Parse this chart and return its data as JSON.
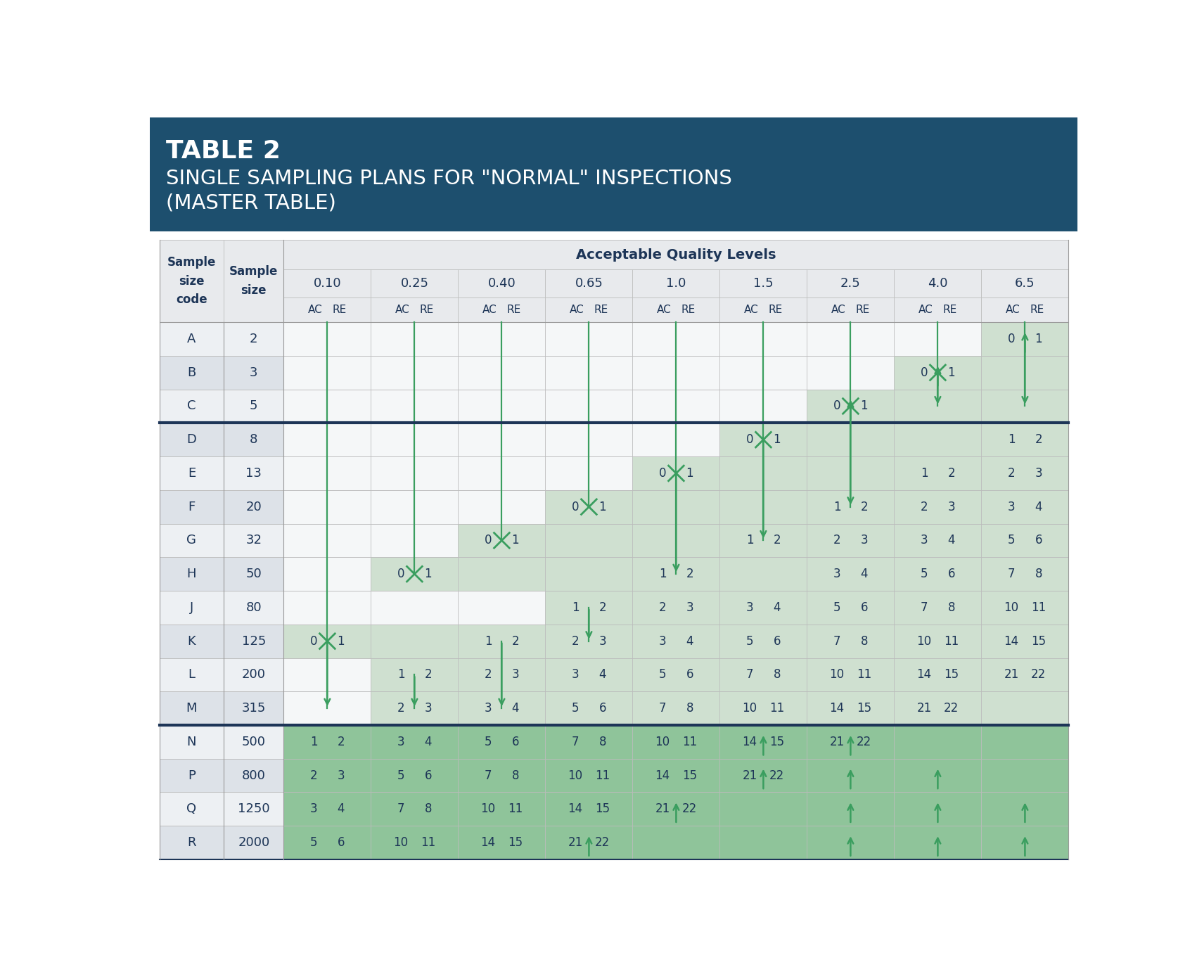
{
  "title_line1": "TABLE 2",
  "title_line2": "SINGLE SAMPLING PLANS FOR \"NORMAL\" INSPECTIONS",
  "title_line3": "(MASTER TABLE)",
  "header_bg": "#1d4f6e",
  "table_header_bg": "#e8eaed",
  "light_green1": "#cfe0d0",
  "light_green2": "#8fc49a",
  "arrow_color": "#3a9e5f",
  "text_dark": "#1d3557",
  "row_labels": [
    "A",
    "B",
    "C",
    "D",
    "E",
    "F",
    "G",
    "H",
    "J",
    "K",
    "L",
    "M",
    "N",
    "P",
    "Q",
    "R"
  ],
  "sample_sizes": [
    "2",
    "3",
    "5",
    "8",
    "13",
    "20",
    "32",
    "50",
    "80",
    "125",
    "200",
    "315",
    "500",
    "800",
    "1250",
    "2000"
  ],
  "aql_levels": [
    "0.10",
    "0.25",
    "0.40",
    "0.65",
    "1.0",
    "1.5",
    "2.5",
    "4.0",
    "6.5"
  ],
  "table_data": {
    "A": {
      "6.5": [
        0,
        1
      ]
    },
    "B": {
      "4.0": [
        0,
        1
      ]
    },
    "C": {
      "2.5": [
        0,
        1
      ]
    },
    "D": {
      "1.5": [
        0,
        1
      ],
      "6.5": [
        1,
        2
      ]
    },
    "E": {
      "1.0": [
        0,
        1
      ],
      "4.0": [
        1,
        2
      ],
      "6.5": [
        2,
        3
      ]
    },
    "F": {
      "0.65": [
        0,
        1
      ],
      "2.5": [
        1,
        2
      ],
      "4.0": [
        2,
        3
      ],
      "6.5": [
        3,
        4
      ]
    },
    "G": {
      "0.40": [
        0,
        1
      ],
      "1.5": [
        1,
        2
      ],
      "2.5": [
        2,
        3
      ],
      "4.0": [
        3,
        4
      ],
      "6.5": [
        5,
        6
      ]
    },
    "H": {
      "0.25": [
        0,
        1
      ],
      "1.0": [
        1,
        2
      ],
      "2.5": [
        3,
        4
      ],
      "4.0": [
        5,
        6
      ],
      "6.5": [
        7,
        8
      ]
    },
    "J": {
      "0.65": [
        1,
        2
      ],
      "1.0": [
        2,
        3
      ],
      "1.5": [
        3,
        4
      ],
      "2.5": [
        5,
        6
      ],
      "4.0": [
        7,
        8
      ],
      "6.5": [
        10,
        11
      ]
    },
    "K": {
      "0.10": [
        0,
        1
      ],
      "0.40": [
        1,
        2
      ],
      "0.65": [
        2,
        3
      ],
      "1.0": [
        3,
        4
      ],
      "1.5": [
        5,
        6
      ],
      "2.5": [
        7,
        8
      ],
      "4.0": [
        10,
        11
      ],
      "6.5": [
        14,
        15
      ]
    },
    "L": {
      "0.25": [
        1,
        2
      ],
      "0.40": [
        2,
        3
      ],
      "0.65": [
        3,
        4
      ],
      "1.0": [
        5,
        6
      ],
      "1.5": [
        7,
        8
      ],
      "2.5": [
        10,
        11
      ],
      "4.0": [
        14,
        15
      ],
      "6.5": [
        21,
        22
      ]
    },
    "M": {
      "0.25": [
        2,
        3
      ],
      "0.40": [
        3,
        4
      ],
      "0.65": [
        5,
        6
      ],
      "1.0": [
        7,
        8
      ],
      "1.5": [
        10,
        11
      ],
      "2.5": [
        14,
        15
      ],
      "4.0": [
        21,
        22
      ]
    },
    "N": {
      "0.10": [
        1,
        2
      ],
      "0.25": [
        3,
        4
      ],
      "0.40": [
        5,
        6
      ],
      "0.65": [
        7,
        8
      ],
      "1.0": [
        10,
        11
      ],
      "1.5": [
        14,
        15
      ],
      "2.5": [
        21,
        22
      ]
    },
    "P": {
      "0.10": [
        2,
        3
      ],
      "0.25": [
        5,
        6
      ],
      "0.40": [
        7,
        8
      ],
      "0.65": [
        10,
        11
      ],
      "1.0": [
        14,
        15
      ],
      "1.5": [
        21,
        22
      ]
    },
    "Q": {
      "0.10": [
        3,
        4
      ],
      "0.25": [
        7,
        8
      ],
      "0.40": [
        10,
        11
      ],
      "0.65": [
        14,
        15
      ],
      "1.0": [
        21,
        22
      ]
    },
    "R": {
      "0.10": [
        5,
        6
      ],
      "0.25": [
        10,
        11
      ],
      "0.40": [
        14,
        15
      ],
      "0.65": [
        21,
        22
      ]
    }
  },
  "green_shaded_start": {
    "A": "6.5",
    "B": "4.0",
    "C": "2.5",
    "D": "1.5",
    "E": "1.0",
    "F": "0.65",
    "G": "0.40",
    "H": "0.25",
    "J": "0.65",
    "K": "0.10",
    "L": "0.25",
    "M": "0.25",
    "N": "0.10",
    "P": "0.10",
    "Q": "0.10",
    "R": "0.10"
  },
  "dark_green_rows": [
    "N",
    "P",
    "Q",
    "R"
  ],
  "thick_border_after": [
    "C",
    "M"
  ],
  "x_markers": [
    [
      "D",
      "1.5"
    ],
    [
      "E",
      "1.0"
    ],
    [
      "F",
      "0.65"
    ],
    [
      "G",
      "0.40"
    ],
    [
      "H",
      "0.25"
    ],
    [
      "K",
      "0.10"
    ],
    [
      "B",
      "4.0"
    ],
    [
      "C",
      "2.5"
    ]
  ],
  "down_arrow_segments": [
    [
      "A",
      "6.5",
      "C",
      "6.5"
    ],
    [
      "A",
      "4.0",
      "B",
      "4.0"
    ],
    [
      "A",
      "2.5",
      "C",
      "2.5"
    ],
    [
      "A",
      "1.5",
      "D",
      "1.5"
    ],
    [
      "A",
      "1.0",
      "E",
      "1.0"
    ],
    [
      "A",
      "0.65",
      "F",
      "0.65"
    ],
    [
      "A",
      "0.40",
      "G",
      "0.40"
    ],
    [
      "A",
      "0.25",
      "H",
      "0.25"
    ],
    [
      "A",
      "0.10",
      "K",
      "0.10"
    ],
    [
      "K",
      "0.40",
      "M",
      "0.40"
    ],
    [
      "J",
      "0.65",
      "K",
      "0.65"
    ],
    [
      "L",
      "0.25",
      "M",
      "0.25"
    ]
  ],
  "up_arrow_cells": [
    [
      "A",
      "6.5"
    ],
    [
      "B",
      "4.0"
    ],
    [
      "C",
      "2.5"
    ],
    [
      "N",
      "1.5"
    ],
    [
      "N",
      "2.5"
    ],
    [
      "P",
      "1.5"
    ],
    [
      "P",
      "2.5"
    ],
    [
      "P",
      "4.0"
    ],
    [
      "Q",
      "1.0"
    ],
    [
      "Q",
      "2.5"
    ],
    [
      "Q",
      "4.0"
    ],
    [
      "Q",
      "6.5"
    ],
    [
      "R",
      "0.65"
    ],
    [
      "R",
      "2.5"
    ],
    [
      "R",
      "4.0"
    ],
    [
      "R",
      "6.5"
    ]
  ]
}
